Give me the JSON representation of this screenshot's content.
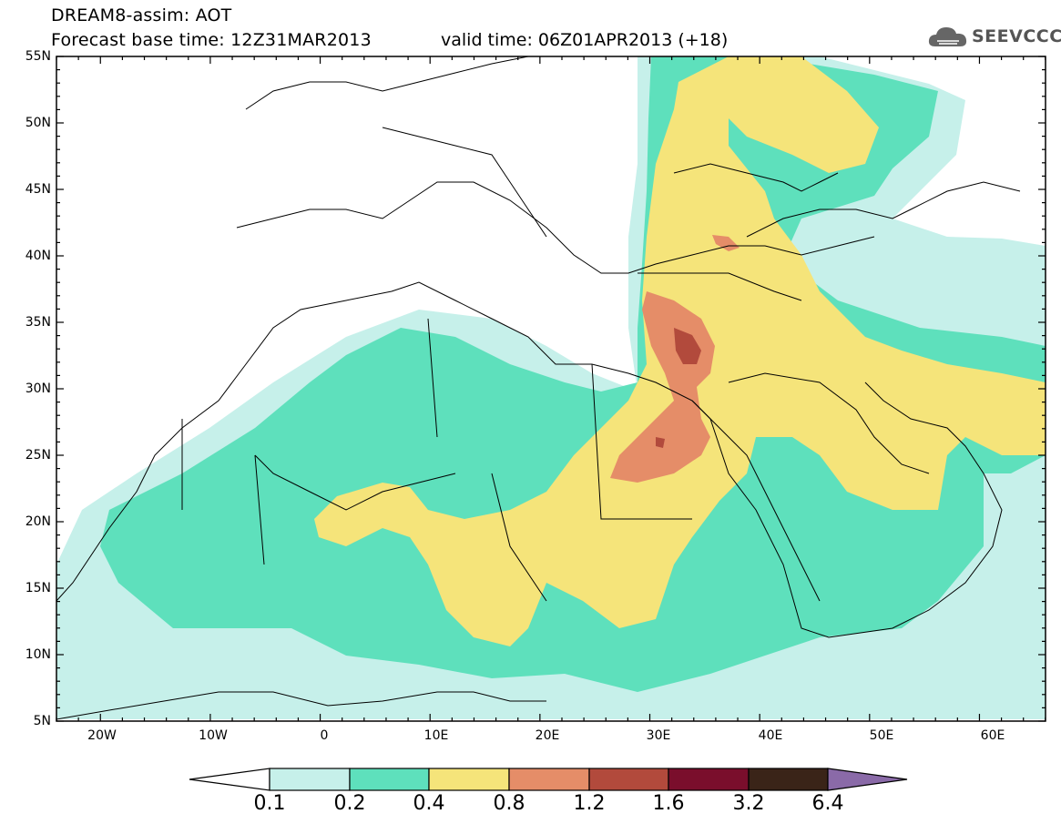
{
  "header": {
    "line1": "DREAM8-assim: AOT",
    "line2_base": "Forecast base time: 12Z31MAR2013",
    "line2_valid": "valid time: 06Z01APR2013 (+18)",
    "logo_text": "SEEVCCC",
    "logo_icon": "cloud-icon"
  },
  "map": {
    "lat_labels": [
      "55N",
      "50N",
      "45N",
      "40N",
      "35N",
      "30N",
      "25N",
      "20N",
      "15N",
      "10N",
      "5N"
    ],
    "lon_labels": [
      "20W",
      "10W",
      "0",
      "10E",
      "20E",
      "30E",
      "40E",
      "50E",
      "60E"
    ]
  },
  "colorbar": {
    "levels": [
      "0.1",
      "0.2",
      "0.4",
      "0.8",
      "1.2",
      "1.6",
      "3.2",
      "6.4"
    ],
    "colors": [
      "#c6f0ea",
      "#5ee0bc",
      "#f5e47a",
      "#e58d68",
      "#b24a3c",
      "#7a0e2c",
      "#3a2418",
      "#8a6aa8"
    ]
  }
}
